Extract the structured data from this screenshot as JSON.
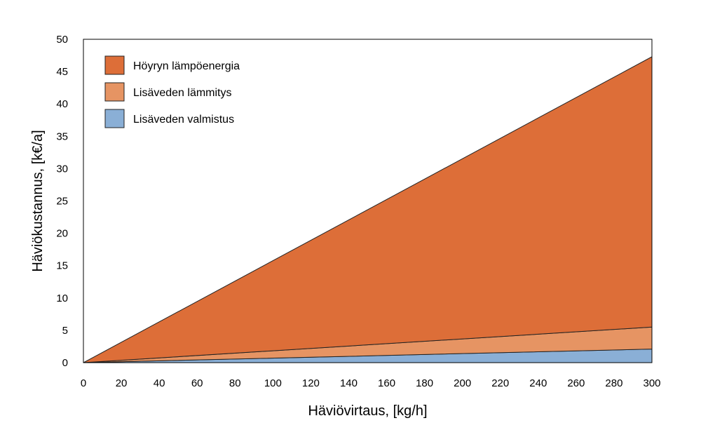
{
  "chart_data": {
    "type": "area",
    "stacked": true,
    "x": [
      0,
      300
    ],
    "xlim": [
      0,
      300
    ],
    "ylim": [
      0,
      50
    ],
    "xticks": [
      0,
      20,
      40,
      60,
      80,
      100,
      120,
      140,
      160,
      180,
      200,
      220,
      240,
      260,
      280,
      300
    ],
    "yticks": [
      0,
      5,
      10,
      15,
      20,
      25,
      30,
      35,
      40,
      45,
      50
    ],
    "xlabel": "Häviövirtaus, [kg/h]",
    "ylabel": "Häviökustannus, [k€/a]",
    "grid": false,
    "legend_position": "top-left",
    "series": [
      {
        "name": "Lisäveden valmistus",
        "values": [
          0,
          2.1
        ],
        "color": "#8AAFD6"
      },
      {
        "name": "Lisäveden lämmitys",
        "values": [
          0,
          3.4
        ],
        "color": "#E69463"
      },
      {
        "name": "Höyryn lämpöenergia",
        "values": [
          0,
          41.8
        ],
        "color": "#DD6E38"
      }
    ],
    "legend_order": [
      2,
      1,
      0
    ]
  }
}
